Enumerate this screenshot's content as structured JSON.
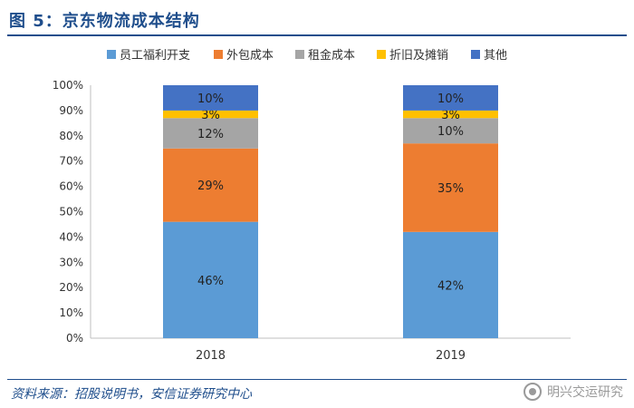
{
  "figure": {
    "title": "图 5：京东物流成本结构",
    "source": "资料来源：招股说明书，安信证券研究中心",
    "watermark": "明兴交运研究"
  },
  "chart_data": {
    "type": "bar",
    "stacked": true,
    "percent": true,
    "categories": [
      "2018",
      "2019"
    ],
    "series": [
      {
        "name": "员工福利开支",
        "color": "#5b9bd5",
        "values": [
          46,
          42
        ]
      },
      {
        "name": "外包成本",
        "color": "#ed7d31",
        "values": [
          29,
          35
        ]
      },
      {
        "name": "租金成本",
        "color": "#a5a5a5",
        "values": [
          12,
          10
        ]
      },
      {
        "name": "折旧及摊销",
        "color": "#ffc000",
        "values": [
          3,
          3
        ]
      },
      {
        "name": "其他",
        "color": "#4472c4",
        "values": [
          10,
          10
        ]
      }
    ],
    "ylim": [
      0,
      100
    ],
    "yticks": [
      "0%",
      "10%",
      "20%",
      "30%",
      "40%",
      "50%",
      "60%",
      "70%",
      "80%",
      "90%",
      "100%"
    ],
    "grid": false,
    "legend": "top"
  }
}
